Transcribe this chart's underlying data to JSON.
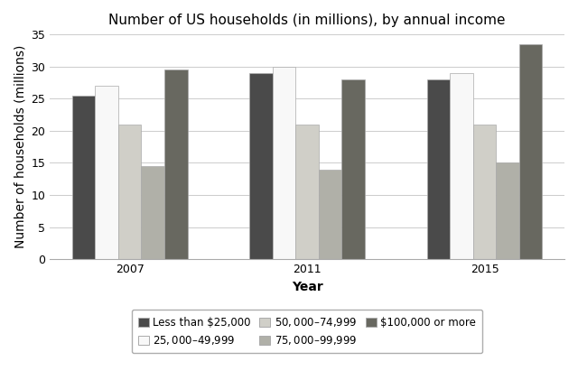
{
  "title": "Number of US households (in millions), by annual income",
  "xlabel": "Year",
  "ylabel": "Number of households (millions)",
  "years": [
    "2007",
    "2011",
    "2015"
  ],
  "categories": [
    "Less than $25,000",
    "$25,000–$49,999",
    "$50,000–$74,999",
    "$75,000–$99,999",
    "$100,000 or more"
  ],
  "values": {
    "Less than $25,000": [
      25.5,
      29.0,
      28.0
    ],
    "$25,000–$49,999": [
      27.0,
      30.0,
      29.0
    ],
    "$50,000–$74,999": [
      21.0,
      21.0,
      21.0
    ],
    "$75,000–$99,999": [
      14.5,
      14.0,
      15.0
    ],
    "$100,000 or more": [
      29.5,
      28.0,
      33.5
    ]
  },
  "colors": [
    "#4a4a4a",
    "#f8f8f8",
    "#d0cfc8",
    "#b0b0a8",
    "#686860"
  ],
  "ylim": [
    0,
    35
  ],
  "yticks": [
    0,
    5,
    10,
    15,
    20,
    25,
    30,
    35
  ],
  "bar_width": 0.13,
  "figsize": [
    6.4,
    4.21
  ],
  "dpi": 100,
  "background_color": "#ffffff",
  "legend_edgecolor": "#999999",
  "title_fontsize": 11,
  "axis_label_fontsize": 10,
  "tick_fontsize": 9,
  "legend_fontsize": 8.5
}
